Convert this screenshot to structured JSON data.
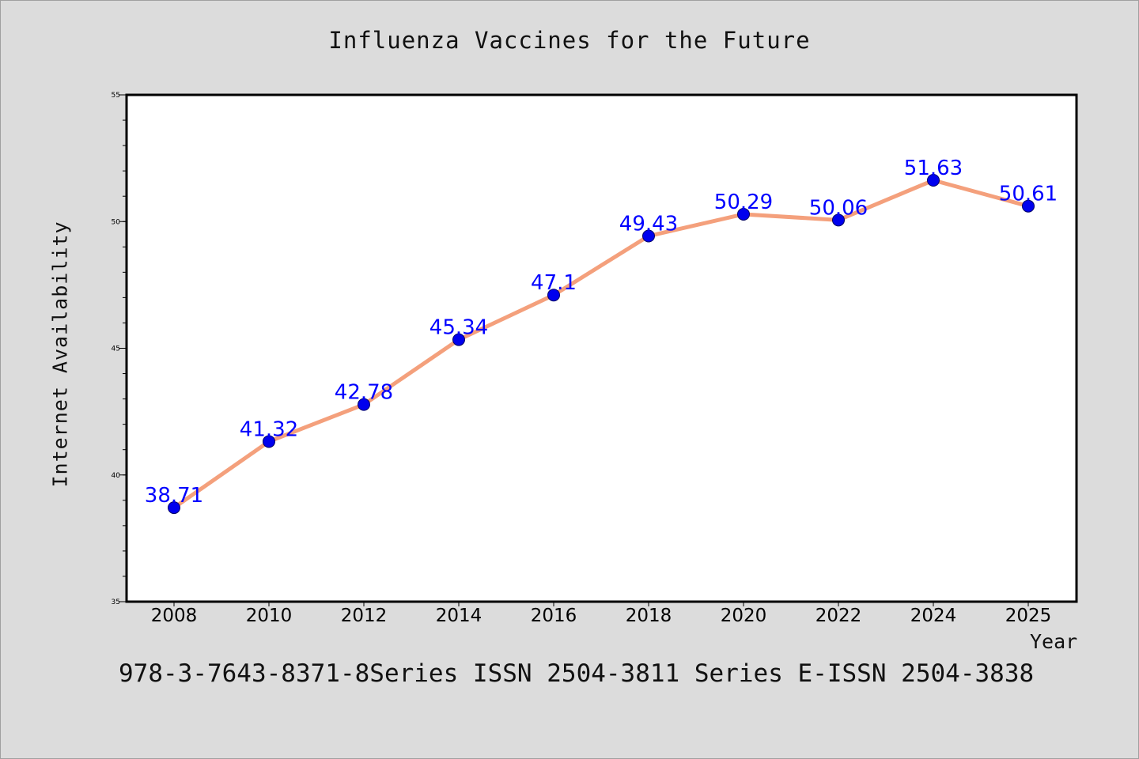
{
  "page": {
    "footer": "978-3-7643-8371-8Series ISSN 2504-3811 Series E-ISSN 2504-3838"
  },
  "colors": {
    "background": "#dcdcdc",
    "plot_background": "#ffffff",
    "line": "#f4a07c",
    "marker": "#0000ee",
    "data_label": "#0000ff"
  },
  "chart_data": {
    "type": "line",
    "title": "Influenza Vaccines for the Future",
    "xlabel": "Year",
    "ylabel": "Internet Availability",
    "categories": [
      "2008",
      "2010",
      "2012",
      "2014",
      "2016",
      "2018",
      "2020",
      "2022",
      "2024",
      "2025"
    ],
    "values": [
      38.71,
      41.32,
      42.78,
      45.34,
      47.1,
      49.43,
      50.29,
      50.06,
      51.63,
      50.61
    ],
    "data_labels": [
      "38.71",
      "41.32",
      "42.78",
      "45.34",
      "47.1",
      "49.43",
      "50.29",
      "50.06",
      "51.63",
      "50.61"
    ],
    "ylim": [
      35,
      55
    ],
    "yticks": [
      35,
      40,
      45,
      50,
      55
    ],
    "ytick_labels": [
      "35",
      "40",
      "45",
      "50",
      "55"
    ],
    "grid": false,
    "legend": "none"
  }
}
